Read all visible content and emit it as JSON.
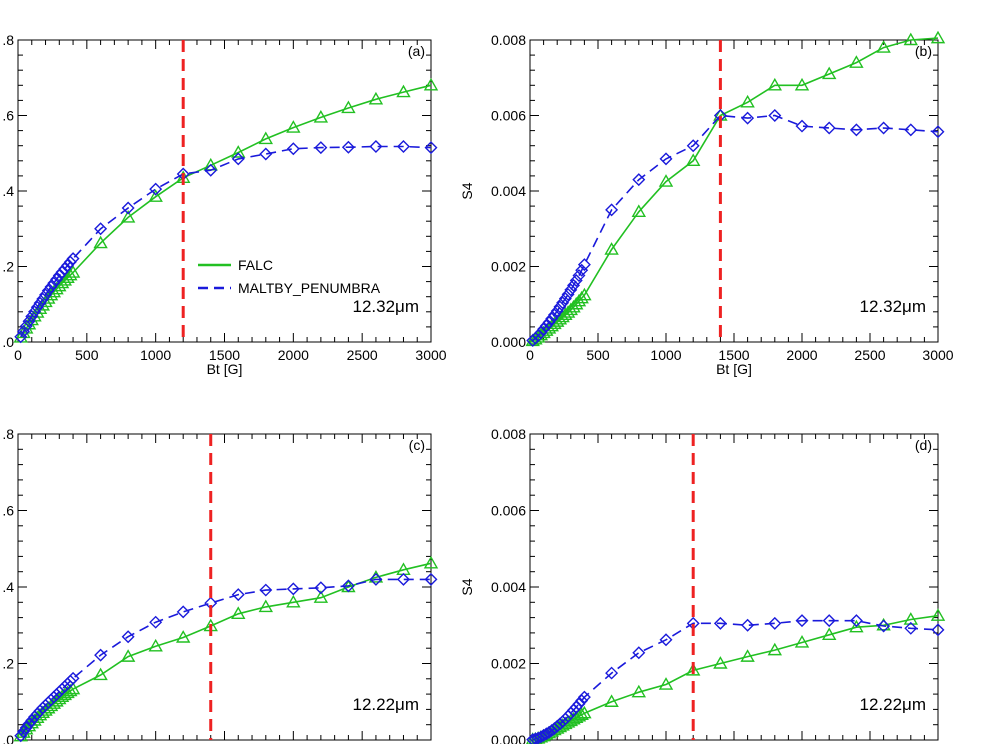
{
  "chart_data": [
    {
      "id": "a",
      "type": "line",
      "panel_label": "(a)",
      "wavelength_label": "12.32μm",
      "xlabel": "Bt [G]",
      "ylabel": "",
      "xlim": [
        0,
        3000
      ],
      "ylim": [
        0,
        0.8
      ],
      "xticks": [
        0,
        500,
        1000,
        1500,
        2000,
        2500,
        3000
      ],
      "xtick_labels": [
        "0",
        "500",
        "1000",
        "1500",
        "2000",
        "2500",
        "3000"
      ],
      "yticks": [
        0,
        0.2,
        0.4,
        0.6,
        0.8
      ],
      "ytick_labels": [
        ".0",
        ".2",
        ".4",
        ".6",
        ".8"
      ],
      "show_xtick_labels": true,
      "vline": 1200,
      "legend": {
        "show": true,
        "entries": [
          "FALC",
          "MALTBY_PENUMBRA"
        ]
      },
      "series": [
        {
          "name": "FALC",
          "color": "#22c022",
          "dash": "solid",
          "marker": "triangle",
          "x": [
            20,
            40,
            60,
            80,
            100,
            120,
            140,
            160,
            180,
            200,
            220,
            240,
            260,
            280,
            300,
            320,
            340,
            360,
            380,
            400,
            600,
            800,
            1000,
            1200,
            1400,
            1600,
            1800,
            2000,
            2200,
            2400,
            2600,
            2800,
            3000
          ],
          "y": [
            0.012,
            0.024,
            0.036,
            0.047,
            0.058,
            0.068,
            0.078,
            0.088,
            0.097,
            0.106,
            0.115,
            0.124,
            0.132,
            0.14,
            0.148,
            0.156,
            0.163,
            0.17,
            0.177,
            0.184,
            0.262,
            0.33,
            0.385,
            0.435,
            0.468,
            0.502,
            0.538,
            0.568,
            0.595,
            0.62,
            0.643,
            0.662,
            0.68
          ]
        },
        {
          "name": "MALTBY_PENUMBRA",
          "color": "#1a1adb",
          "dash": "dashed",
          "marker": "diamond",
          "x": [
            20,
            40,
            60,
            80,
            100,
            120,
            140,
            160,
            180,
            200,
            220,
            240,
            260,
            280,
            300,
            320,
            340,
            360,
            380,
            400,
            600,
            800,
            1000,
            1200,
            1400,
            1600,
            1800,
            2000,
            2200,
            2400,
            2600,
            2800,
            3000
          ],
          "y": [
            0.014,
            0.028,
            0.042,
            0.055,
            0.068,
            0.08,
            0.092,
            0.103,
            0.114,
            0.125,
            0.136,
            0.146,
            0.156,
            0.166,
            0.176,
            0.185,
            0.194,
            0.203,
            0.212,
            0.221,
            0.3,
            0.355,
            0.405,
            0.445,
            0.455,
            0.485,
            0.498,
            0.512,
            0.515,
            0.516,
            0.518,
            0.518,
            0.515
          ]
        }
      ]
    },
    {
      "id": "b",
      "type": "line",
      "panel_label": "(b)",
      "wavelength_label": "12.32μm",
      "xlabel": "Bt [G]",
      "ylabel": "S4",
      "xlim": [
        0,
        3000
      ],
      "ylim": [
        0,
        0.008
      ],
      "xticks": [
        0,
        500,
        1000,
        1500,
        2000,
        2500,
        3000
      ],
      "xtick_labels": [
        "0",
        "500",
        "1000",
        "1500",
        "2000",
        "2500",
        "3000"
      ],
      "yticks": [
        0,
        0.002,
        0.004,
        0.006,
        0.008
      ],
      "ytick_labels": [
        "0.000",
        "0.002",
        "0.004",
        "0.006",
        "0.008"
      ],
      "show_xtick_labels": true,
      "vline": 1400,
      "legend": {
        "show": false,
        "entries": []
      },
      "series": [
        {
          "name": "FALC",
          "color": "#22c022",
          "dash": "solid",
          "marker": "triangle",
          "x": [
            20,
            40,
            60,
            80,
            100,
            120,
            140,
            160,
            180,
            200,
            220,
            240,
            260,
            280,
            300,
            320,
            340,
            360,
            380,
            400,
            600,
            800,
            1000,
            1200,
            1400,
            1600,
            1800,
            2000,
            2200,
            2400,
            2600,
            2800,
            3000
          ],
          "y": [
            3e-05,
            7e-05,
            0.00012,
            0.00018,
            0.00024,
            0.0003,
            0.00036,
            0.00042,
            0.00048,
            0.00054,
            0.0006,
            0.00066,
            0.00072,
            0.00078,
            0.00085,
            0.00092,
            0.001,
            0.00108,
            0.00116,
            0.00124,
            0.00245,
            0.00345,
            0.00425,
            0.0048,
            0.006,
            0.00635,
            0.0068,
            0.0068,
            0.0071,
            0.0074,
            0.0078,
            0.008,
            0.00805
          ]
        },
        {
          "name": "MALTBY_PENUMBRA",
          "color": "#1a1adb",
          "dash": "dashed",
          "marker": "diamond",
          "x": [
            20,
            40,
            60,
            80,
            100,
            120,
            140,
            160,
            180,
            200,
            220,
            240,
            260,
            280,
            300,
            320,
            340,
            360,
            380,
            400,
            600,
            800,
            1000,
            1200,
            1400,
            1600,
            1800,
            2000,
            2200,
            2400,
            2600,
            2800,
            3000
          ],
          "y": [
            4e-05,
            0.0001,
            0.00017,
            0.00025,
            0.00034,
            0.00043,
            0.00052,
            0.00062,
            0.00072,
            0.00082,
            0.00093,
            0.00104,
            0.00115,
            0.00126,
            0.00138,
            0.0015,
            0.00163,
            0.00176,
            0.0019,
            0.00205,
            0.0035,
            0.0043,
            0.00485,
            0.0052,
            0.006,
            0.00593,
            0.006,
            0.00572,
            0.00567,
            0.00562,
            0.00567,
            0.00562,
            0.00557
          ]
        }
      ]
    },
    {
      "id": "c",
      "type": "line",
      "panel_label": "(c)",
      "wavelength_label": "12.22μm",
      "xlabel": "",
      "ylabel": "",
      "xlim": [
        0,
        3000
      ],
      "ylim": [
        0,
        0.8
      ],
      "xticks": [
        0,
        500,
        1000,
        1500,
        2000,
        2500,
        3000
      ],
      "xtick_labels": [],
      "yticks": [
        0,
        0.2,
        0.4,
        0.6,
        0.8
      ],
      "ytick_labels": [
        ".0",
        ".2",
        ".4",
        ".6",
        ".8"
      ],
      "show_xtick_labels": false,
      "vline": 1400,
      "legend": {
        "show": false,
        "entries": []
      },
      "series": [
        {
          "name": "FALC",
          "color": "#22c022",
          "dash": "solid",
          "marker": "triangle",
          "x": [
            20,
            40,
            60,
            80,
            100,
            120,
            140,
            160,
            180,
            200,
            220,
            240,
            260,
            280,
            300,
            320,
            340,
            360,
            380,
            400,
            600,
            800,
            1000,
            1200,
            1400,
            1600,
            1800,
            2000,
            2200,
            2400,
            2600,
            2800,
            3000
          ],
          "y": [
            0.01,
            0.019,
            0.028,
            0.036,
            0.044,
            0.051,
            0.058,
            0.065,
            0.071,
            0.077,
            0.083,
            0.089,
            0.095,
            0.101,
            0.107,
            0.113,
            0.118,
            0.123,
            0.128,
            0.133,
            0.17,
            0.218,
            0.245,
            0.268,
            0.298,
            0.33,
            0.348,
            0.36,
            0.372,
            0.4,
            0.425,
            0.445,
            0.462
          ]
        },
        {
          "name": "MALTBY_PENUMBRA",
          "color": "#1a1adb",
          "dash": "dashed",
          "marker": "diamond",
          "x": [
            20,
            40,
            60,
            80,
            100,
            120,
            140,
            160,
            180,
            200,
            220,
            240,
            260,
            280,
            300,
            320,
            340,
            360,
            380,
            400,
            600,
            800,
            1000,
            1200,
            1400,
            1600,
            1800,
            2000,
            2200,
            2400,
            2600,
            2800,
            3000
          ],
          "y": [
            0.011,
            0.022,
            0.032,
            0.042,
            0.051,
            0.06,
            0.068,
            0.076,
            0.084,
            0.091,
            0.098,
            0.105,
            0.112,
            0.119,
            0.126,
            0.133,
            0.14,
            0.147,
            0.154,
            0.161,
            0.222,
            0.27,
            0.308,
            0.335,
            0.358,
            0.38,
            0.392,
            0.395,
            0.398,
            0.403,
            0.42,
            0.42,
            0.42
          ]
        }
      ]
    },
    {
      "id": "d",
      "type": "line",
      "panel_label": "(d)",
      "wavelength_label": "12.22μm",
      "xlabel": "",
      "ylabel": "S4",
      "xlim": [
        0,
        3000
      ],
      "ylim": [
        0,
        0.008
      ],
      "xticks": [
        0,
        500,
        1000,
        1500,
        2000,
        2500,
        3000
      ],
      "xtick_labels": [],
      "yticks": [
        0,
        0.002,
        0.004,
        0.006,
        0.008
      ],
      "ytick_labels": [
        "0.000",
        "0.002",
        "0.004",
        "0.006",
        "0.008"
      ],
      "show_xtick_labels": false,
      "vline": 1200,
      "legend": {
        "show": false,
        "entries": []
      },
      "series": [
        {
          "name": "FALC",
          "color": "#22c022",
          "dash": "solid",
          "marker": "triangle",
          "x": [
            20,
            40,
            60,
            80,
            100,
            120,
            140,
            160,
            180,
            200,
            220,
            240,
            260,
            280,
            300,
            320,
            340,
            360,
            380,
            400,
            600,
            800,
            1000,
            1200,
            1400,
            1600,
            1800,
            2000,
            2200,
            2400,
            2600,
            2800,
            3000
          ],
          "y": [
            1e-05,
            2e-05,
            4e-05,
            7e-05,
            0.0001,
            0.00014,
            0.00018,
            0.00022,
            0.00026,
            0.0003,
            0.00034,
            0.00038,
            0.00042,
            0.00046,
            0.0005,
            0.00054,
            0.00058,
            0.00062,
            0.00066,
            0.0007,
            0.001,
            0.00125,
            0.00145,
            0.00182,
            0.002,
            0.00218,
            0.00235,
            0.00255,
            0.00275,
            0.00295,
            0.003,
            0.00315,
            0.00325
          ]
        },
        {
          "name": "MALTBY_PENUMBRA",
          "color": "#1a1adb",
          "dash": "dashed",
          "marker": "diamond",
          "x": [
            20,
            40,
            60,
            80,
            100,
            120,
            140,
            160,
            180,
            200,
            220,
            240,
            260,
            280,
            300,
            320,
            340,
            360,
            380,
            400,
            600,
            800,
            1000,
            1200,
            1400,
            1600,
            1800,
            2000,
            2200,
            2400,
            2600,
            2800,
            3000
          ],
          "y": [
            1e-05,
            3e-05,
            5e-05,
            8e-05,
            0.00012,
            0.00016,
            0.0002,
            0.00025,
            0.0003,
            0.00036,
            0.00042,
            0.00048,
            0.00055,
            0.00062,
            0.0007,
            0.00078,
            0.00086,
            0.00094,
            0.00103,
            0.00112,
            0.00175,
            0.00228,
            0.00262,
            0.00305,
            0.00305,
            0.003,
            0.00305,
            0.00312,
            0.00312,
            0.00312,
            0.00298,
            0.00292,
            0.00288
          ]
        }
      ]
    }
  ]
}
